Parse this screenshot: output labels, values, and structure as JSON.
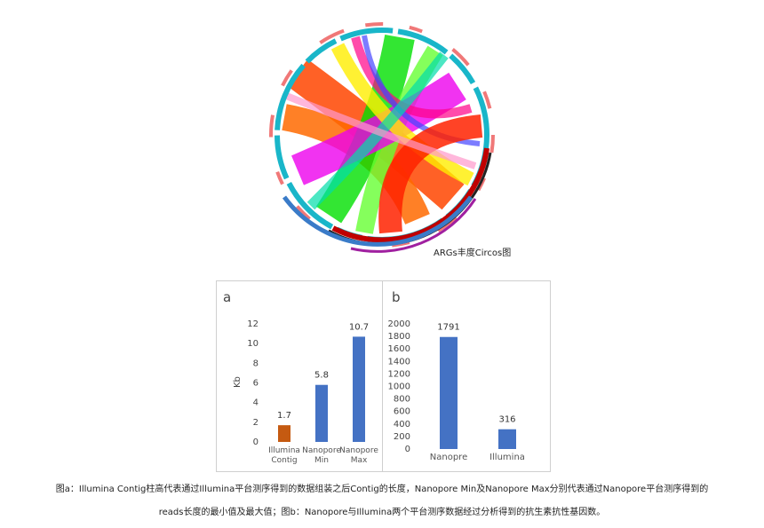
{
  "circos": {
    "title": "ARGs丰度Circos图"
  },
  "chart_data": [
    {
      "type": "bar",
      "panel_label": "a",
      "ylabel": "Kb",
      "ylim": [
        0,
        12
      ],
      "yticks": [
        "0",
        "2",
        "4",
        "6",
        "8",
        "10",
        "12"
      ],
      "categories": [
        [
          "Illumina",
          "Contig"
        ],
        [
          "Nanopore",
          "Min"
        ],
        [
          "Nanopore",
          "Max"
        ]
      ],
      "values": [
        1.7,
        5.8,
        10.7
      ],
      "value_labels": [
        "1.7",
        "5.8",
        "10.7"
      ],
      "colors": [
        "#c55a11",
        "#4472c4",
        "#4472c4"
      ],
      "grid": false
    },
    {
      "type": "bar",
      "panel_label": "b",
      "ylabel": "",
      "ylim": [
        0,
        2000
      ],
      "yticks": [
        "0",
        "200",
        "400",
        "600",
        "800",
        "1000",
        "1200",
        "1400",
        "1600",
        "1800",
        "2000"
      ],
      "categories": [
        [
          "Nanopre"
        ],
        [
          "Illumina"
        ]
      ],
      "values": [
        1791,
        316
      ],
      "value_labels": [
        "1791",
        "316"
      ],
      "colors": [
        "#4472c4",
        "#4472c4"
      ],
      "grid": false
    }
  ],
  "caption": {
    "line1": "图a：Illumina Contig柱高代表通过Illumina平台测序得到的数据组装之后Contig的长度，Nanopore Min及Nanopore Max分别代表通过Nanopore平台测序得到的",
    "line2": "reads长度的最小值及最大值；图b：Nanopore与Illumina两个平台测序数据经过分析得到的抗生素抗性基因数。"
  }
}
